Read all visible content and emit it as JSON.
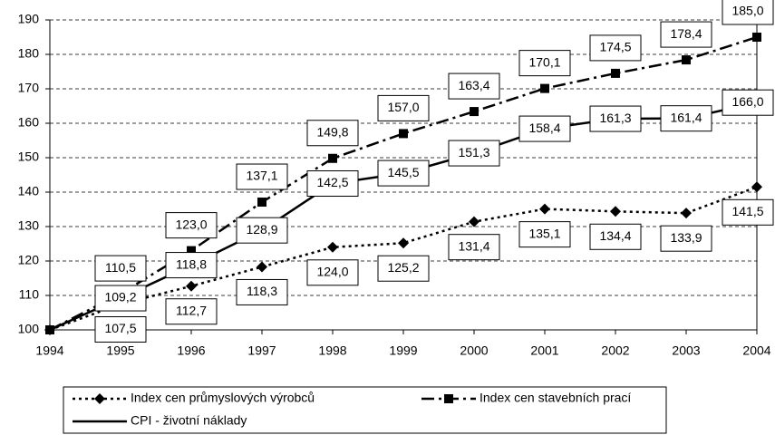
{
  "chart_data": {
    "type": "line",
    "x": [
      1994,
      1995,
      1996,
      1997,
      1998,
      1999,
      2000,
      2001,
      2002,
      2003,
      2004
    ],
    "xlim": [
      1994,
      2004
    ],
    "xticks": [
      1994,
      1995,
      1996,
      1997,
      1998,
      1999,
      2000,
      2001,
      2002,
      2003,
      2004
    ],
    "ylim": [
      100,
      190
    ],
    "yticks": [
      100,
      110,
      120,
      130,
      140,
      150,
      160,
      170,
      180,
      190
    ],
    "grid": true,
    "series": [
      {
        "name": "Index cen průmyslových výrobců",
        "color": "#000000",
        "marker": "diamond",
        "dash": "dotted",
        "values": [
          100,
          107.5,
          112.7,
          118.3,
          124.0,
          125.2,
          131.4,
          135.1,
          134.4,
          133.9,
          141.5
        ],
        "value_labels": [
          null,
          "107,5",
          "112,7",
          "118,3",
          "124,0",
          "125,2",
          "131,4",
          "135,1",
          "134,4",
          "133,9",
          "141,5"
        ]
      },
      {
        "name": "Index cen stavebních prací",
        "color": "#000000",
        "marker": "square",
        "dash": "dashdot",
        "values": [
          100,
          110.5,
          123.0,
          137.1,
          149.8,
          157.0,
          163.4,
          170.1,
          174.5,
          178.4,
          185.0
        ],
        "value_labels": [
          null,
          "110,5",
          "123,0",
          "137,1",
          "149,8",
          "157,0",
          "163,4",
          "170,1",
          "174,5",
          "178,4",
          "185,0"
        ]
      },
      {
        "name": "CPI - životní náklady",
        "color": "#000000",
        "marker": "none",
        "dash": "solid",
        "values": [
          100,
          109.2,
          118.8,
          128.9,
          142.5,
          145.5,
          151.3,
          158.4,
          161.3,
          161.4,
          166.0
        ],
        "value_labels": [
          null,
          "109,2",
          "118,8",
          "128,9",
          "142,5",
          "145,5",
          "151,3",
          "158,4",
          "161,3",
          "161,4",
          "166,0"
        ]
      }
    ]
  }
}
